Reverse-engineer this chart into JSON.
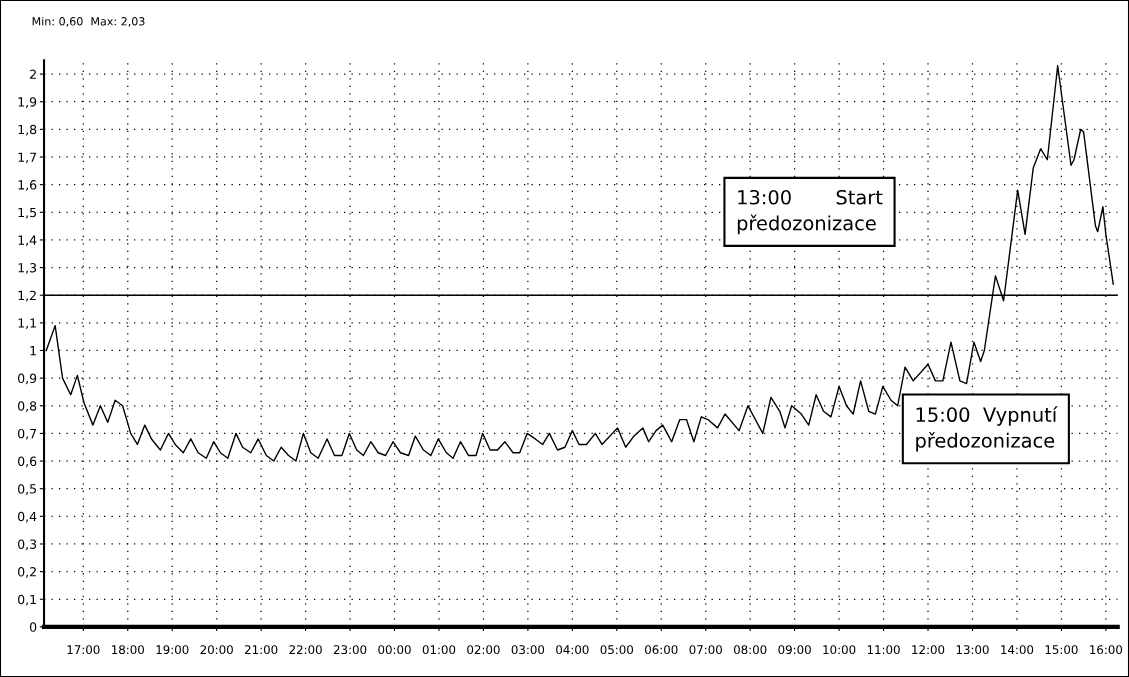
{
  "chart_data": {
    "type": "line",
    "annotations": [
      "Min: 0,60  Max: 2,03",
      "13:00       Start\npředozonizace",
      "15:00  Vypnutí\npředozonizace"
    ],
    "series": [
      {
        "color": "#000000",
        "x": [
          "2000-01-01T16:10",
          "2000-01-01T16:22",
          "2000-01-01T16:32",
          "2000-01-01T16:43",
          "2000-01-01T16:52",
          "2000-01-01T17:01",
          "2000-01-01T17:13",
          "2000-01-01T17:23",
          "2000-01-01T17:33",
          "2000-01-01T17:43",
          "2000-01-01T17:53",
          "2000-01-01T18:04",
          "2000-01-01T18:13",
          "2000-01-01T18:23",
          "2000-01-01T18:32",
          "2000-01-01T18:44",
          "2000-01-01T18:55",
          "2000-01-01T19:04",
          "2000-01-01T19:15",
          "2000-01-01T19:25",
          "2000-01-01T19:35",
          "2000-01-01T19:46",
          "2000-01-01T19:56",
          "2000-01-01T20:05",
          "2000-01-01T20:15",
          "2000-01-01T20:26",
          "2000-01-01T20:35",
          "2000-01-01T20:46",
          "2000-01-01T20:56",
          "2000-01-01T21:07",
          "2000-01-01T21:17",
          "2000-01-01T21:27",
          "2000-01-01T21:37",
          "2000-01-01T21:47",
          "2000-01-01T21:57",
          "2000-01-01T22:07",
          "2000-01-01T22:17",
          "2000-01-01T22:29",
          "2000-01-01T22:39",
          "2000-01-01T22:49",
          "2000-01-01T22:59",
          "2000-01-01T23:09",
          "2000-01-01T23:18",
          "2000-01-01T23:28",
          "2000-01-01T23:38",
          "2000-01-01T23:48",
          "2000-01-01T23:58",
          "2000-01-02T00:08",
          "2000-01-02T00:19",
          "2000-01-02T00:28",
          "2000-01-02T00:39",
          "2000-01-02T00:49",
          "2000-01-02T00:59",
          "2000-01-02T01:10",
          "2000-01-02T01:19",
          "2000-01-02T01:29",
          "2000-01-02T01:40",
          "2000-01-02T01:50",
          "2000-01-02T01:59",
          "2000-01-02T02:09",
          "2000-01-02T02:19",
          "2000-01-02T02:29",
          "2000-01-02T02:40",
          "2000-01-02T02:49",
          "2000-01-02T02:59",
          "2000-01-02T03:10",
          "2000-01-02T03:20",
          "2000-01-02T03:29",
          "2000-01-02T03:40",
          "2000-01-02T03:50",
          "2000-01-02T04:00",
          "2000-01-02T04:09",
          "2000-01-02T04:19",
          "2000-01-02T04:31",
          "2000-01-02T04:40",
          "2000-01-02T05:01",
          "2000-01-02T05:12",
          "2000-01-02T05:23",
          "2000-01-02T05:35",
          "2000-01-02T05:43",
          "2000-01-02T05:53",
          "2000-01-02T06:02",
          "2000-01-02T06:14",
          "2000-01-02T06:25",
          "2000-01-02T06:34",
          "2000-01-02T06:44",
          "2000-01-02T06:54",
          "2000-01-02T07:03",
          "2000-01-02T07:16",
          "2000-01-02T07:26",
          "2000-01-02T07:45",
          "2000-01-02T07:57",
          "2000-01-02T08:17",
          "2000-01-02T08:28",
          "2000-01-02T08:40",
          "2000-01-02T08:47",
          "2000-01-02T08:56",
          "2000-01-02T09:09",
          "2000-01-02T09:19",
          "2000-01-02T09:29",
          "2000-01-02T09:39",
          "2000-01-02T09:49",
          "2000-01-02T10:00",
          "2000-01-02T10:10",
          "2000-01-02T10:19",
          "2000-01-02T10:29",
          "2000-01-02T10:40",
          "2000-01-02T10:49",
          "2000-01-02T10:59",
          "2000-01-02T11:10",
          "2000-01-02T11:19",
          "2000-01-02T11:29",
          "2000-01-02T11:40",
          "2000-01-02T12:00",
          "2000-01-02T12:10",
          "2000-01-02T12:20",
          "2000-01-02T12:31",
          "2000-01-02T12:43",
          "2000-01-02T12:52",
          "2000-01-02T13:02",
          "2000-01-02T13:11",
          "2000-01-02T13:16",
          "2000-01-02T13:31",
          "2000-01-02T13:42",
          "2000-01-02T14:01",
          "2000-01-02T14:11",
          "2000-01-02T14:22",
          "2000-01-02T14:32",
          "2000-01-02T14:41",
          "2000-01-02T14:55",
          "2000-01-02T15:02",
          "2000-01-02T15:13",
          "2000-01-02T15:17",
          "2000-01-02T15:26",
          "2000-01-02T15:30",
          "2000-01-02T15:46",
          "2000-01-02T15:49",
          "2000-01-02T15:56",
          "2000-01-02T16:00",
          "2000-01-02T16:10"
        ],
        "values": [
          1.0,
          1.09,
          0.9,
          0.84,
          0.91,
          0.81,
          0.73,
          0.8,
          0.74,
          0.82,
          0.8,
          0.7,
          0.66,
          0.73,
          0.68,
          0.64,
          0.7,
          0.66,
          0.63,
          0.68,
          0.63,
          0.61,
          0.67,
          0.63,
          0.61,
          0.7,
          0.65,
          0.63,
          0.68,
          0.62,
          0.6,
          0.65,
          0.62,
          0.6,
          0.7,
          0.63,
          0.61,
          0.68,
          0.62,
          0.62,
          0.7,
          0.64,
          0.62,
          0.67,
          0.63,
          0.62,
          0.67,
          0.63,
          0.62,
          0.69,
          0.64,
          0.62,
          0.68,
          0.63,
          0.61,
          0.67,
          0.62,
          0.62,
          0.7,
          0.64,
          0.64,
          0.67,
          0.63,
          0.63,
          0.7,
          0.68,
          0.66,
          0.7,
          0.64,
          0.65,
          0.71,
          0.66,
          0.66,
          0.7,
          0.66,
          0.72,
          0.65,
          0.69,
          0.72,
          0.67,
          0.71,
          0.73,
          0.67,
          0.75,
          0.75,
          0.67,
          0.76,
          0.75,
          0.72,
          0.77,
          0.71,
          0.8,
          0.7,
          0.83,
          0.78,
          0.72,
          0.8,
          0.77,
          0.73,
          0.84,
          0.78,
          0.76,
          0.87,
          0.8,
          0.77,
          0.89,
          0.78,
          0.77,
          0.87,
          0.82,
          0.8,
          0.94,
          0.89,
          0.95,
          0.89,
          0.89,
          1.03,
          0.89,
          0.88,
          1.03,
          0.96,
          1.0,
          1.27,
          1.18,
          1.58,
          1.42,
          1.66,
          1.73,
          1.69,
          2.03,
          1.89,
          1.67,
          1.69,
          1.8,
          1.79,
          1.45,
          1.43,
          1.52,
          1.42,
          1.24
        ]
      }
    ],
    "xlim": [
      "2000-01-01T16:07",
      "2000-01-02T16:16"
    ],
    "ylim": [
      0,
      2.05
    ],
    "xticks": [
      {
        "value": "2000-01-01T17:00",
        "label": "17:00"
      },
      {
        "value": "2000-01-01T18:00",
        "label": "18:00"
      },
      {
        "value": "2000-01-01T19:00",
        "label": "19:00"
      },
      {
        "value": "2000-01-01T20:00",
        "label": "20:00"
      },
      {
        "value": "2000-01-01T21:00",
        "label": "21:00"
      },
      {
        "value": "2000-01-01T22:00",
        "label": "22:00"
      },
      {
        "value": "2000-01-01T23:00",
        "label": "23:00"
      },
      {
        "value": "2000-01-02T00:00",
        "label": "00:00"
      },
      {
        "value": "2000-01-02T01:00",
        "label": "01:00"
      },
      {
        "value": "2000-01-02T02:00",
        "label": "02:00"
      },
      {
        "value": "2000-01-02T03:00",
        "label": "03:00"
      },
      {
        "value": "2000-01-02T04:00",
        "label": "04:00"
      },
      {
        "value": "2000-01-02T05:00",
        "label": "05:00"
      },
      {
        "value": "2000-01-02T06:00",
        "label": "06:00"
      },
      {
        "value": "2000-01-02T07:00",
        "label": "07:00"
      },
      {
        "value": "2000-01-02T08:00",
        "label": "08:00"
      },
      {
        "value": "2000-01-02T09:00",
        "label": "09:00"
      },
      {
        "value": "2000-01-02T10:00",
        "label": "10:00"
      },
      {
        "value": "2000-01-02T11:00",
        "label": "11:00"
      },
      {
        "value": "2000-01-02T12:00",
        "label": "12:00"
      },
      {
        "value": "2000-01-02T13:00",
        "label": "13:00"
      },
      {
        "value": "2000-01-02T14:00",
        "label": "14:00"
      },
      {
        "value": "2000-01-02T15:00",
        "label": "15:00"
      },
      {
        "value": "2000-01-02T16:00",
        "label": "16:00"
      }
    ],
    "yticks": [
      0,
      {
        "value": 0.1,
        "label": "0,1"
      },
      {
        "value": 0.2,
        "label": "0,2"
      },
      {
        "value": 0.3,
        "label": "0,3"
      },
      {
        "value": 0.4,
        "label": "0,4"
      },
      {
        "value": 0.5,
        "label": "0,5"
      },
      {
        "value": 0.6,
        "label": "0,6"
      },
      {
        "value": 0.7,
        "label": "0,7"
      },
      {
        "value": 0.8,
        "label": "0,8"
      },
      {
        "value": 0.9,
        "label": "0,9"
      },
      1,
      {
        "value": 1.1,
        "label": "1,1"
      },
      {
        "value": 1.2,
        "label": "1,2"
      },
      {
        "value": 1.3,
        "label": "1,3"
      },
      {
        "value": 1.4,
        "label": "1,4"
      },
      {
        "value": 1.5,
        "label": "1,5"
      },
      {
        "value": 1.6,
        "label": "1,6"
      },
      {
        "value": 1.7,
        "label": "1,7"
      },
      {
        "value": 1.8,
        "label": "1,8"
      },
      {
        "value": 1.9,
        "label": "1,9"
      },
      2
    ],
    "ref_lines": [
      {
        "axis": "y",
        "value": 1.2,
        "color": "#000000"
      }
    ],
    "grid": true,
    "line_style": "solid"
  }
}
